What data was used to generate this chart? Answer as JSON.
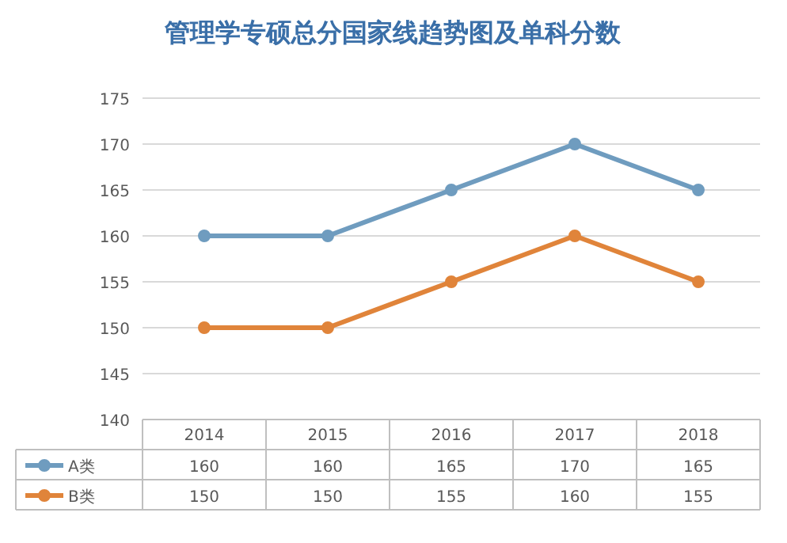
{
  "chart_data": {
    "type": "line",
    "title": "管理学专硕总分国家线趋势图及单科分数",
    "categories": [
      "2014",
      "2015",
      "2016",
      "2017",
      "2018"
    ],
    "series": [
      {
        "name": "A类",
        "color": "#6f9cbf",
        "values": [
          160,
          160,
          165,
          170,
          165
        ]
      },
      {
        "name": "B类",
        "color": "#e0843a",
        "values": [
          150,
          150,
          155,
          160,
          155
        ]
      }
    ],
    "ylim": [
      140,
      175
    ],
    "yticks": [
      140,
      145,
      150,
      155,
      160,
      165,
      170,
      175
    ],
    "grid": "y",
    "legend": "bottom",
    "marker": "circle",
    "line_style": "solid",
    "data_labels": true
  }
}
